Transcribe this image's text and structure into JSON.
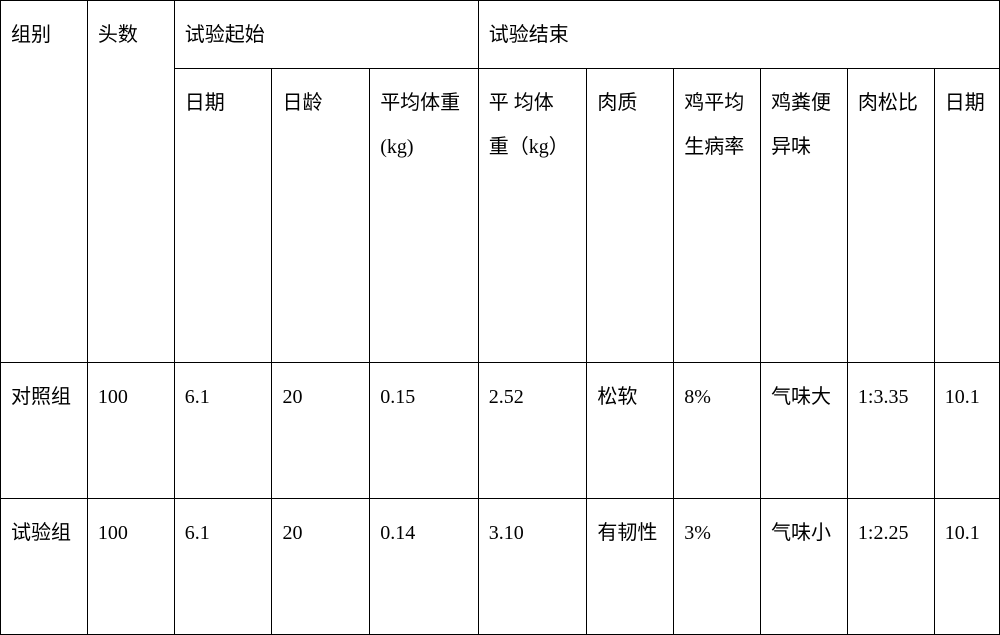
{
  "table": {
    "background_color": "#ffffff",
    "border_color": "#000000",
    "text_color": "#000000",
    "font_family": "SimSun",
    "font_size_pt": 15,
    "line_height": 2.2,
    "headers": {
      "group": "组别",
      "count": "头数",
      "start_span": "试验起始",
      "end_span": "试验结束",
      "start": {
        "date": "日期",
        "age": "日龄",
        "avg_weight": "平均体重(kg)"
      },
      "end": {
        "avg_weight": "平 均体 重（kg）",
        "meat_quality": "肉质",
        "avg_sick_rate": "鸡平均生病率",
        "feces_odor": "鸡粪便异味",
        "meat_ratio": "肉松比",
        "date": "日期"
      }
    },
    "rows": [
      {
        "group": "对照组",
        "count": "100",
        "start_date": "6.1",
        "age": "20",
        "start_weight": "0.15",
        "end_weight": "2.52",
        "meat_quality": "松软",
        "sick_rate": "8%",
        "feces_odor": "气味大",
        "meat_ratio": "1:3.35",
        "end_date": "10.1"
      },
      {
        "group": "试验组",
        "count": "100",
        "start_date": "6.1",
        "age": "20",
        "start_weight": "0.14",
        "end_weight": "3.10",
        "meat_quality": "有韧性",
        "sick_rate": "3%",
        "feces_odor": "气味小",
        "meat_ratio": "1:2.25",
        "end_date": "10.1"
      }
    ]
  }
}
